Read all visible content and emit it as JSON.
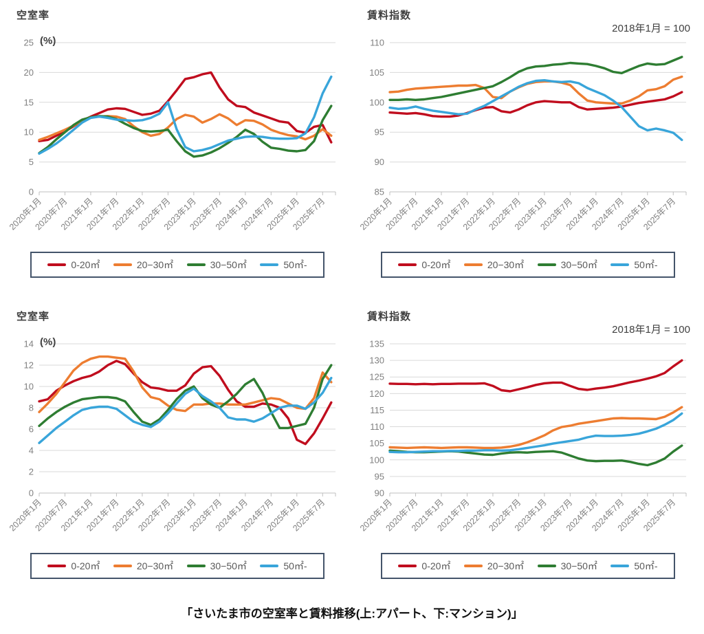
{
  "page": {
    "caption": "「さいたま市の空室率と賃料推移(上:アパート、下:マンション)」"
  },
  "x_axis": {
    "tick_labels": [
      "2020年1月",
      "2020年7月",
      "2021年1月",
      "2021年7月",
      "2022年1月",
      "2022年7月",
      "2023年1月",
      "2023年7月",
      "2024年1月",
      "2024年7月",
      "2025年1月",
      "2025年7月"
    ],
    "tick_interval_months": 6,
    "axis_total_months": 69
  },
  "legend": {
    "items": [
      {
        "key": "0-20",
        "label": "0-20㎡",
        "color": "#c00d1e"
      },
      {
        "key": "20-30",
        "label": "20−30㎡",
        "color": "#ed7d31"
      },
      {
        "key": "30-50",
        "label": "30−50㎡",
        "color": "#2e7d32"
      },
      {
        "key": "50-",
        "label": "50㎡-",
        "color": "#39a5da"
      }
    ]
  },
  "styles": {
    "grid_color": "#d9d9d9",
    "axis_color": "#bfbfbf",
    "tick_text_color": "#808080",
    "title_text_color": "#3f3f3f",
    "legend_border_color": "#44546a",
    "legend_text_color": "#595959"
  },
  "chart_data": [
    {
      "type": "line",
      "building": "アパート",
      "title": "空室率",
      "unit": "(%)",
      "subtitle": "",
      "ymin": 0,
      "ymax": 25,
      "ystep": 5,
      "x_start_month": 0,
      "x_step_months": 2,
      "series": [
        {
          "name": "0-20㎡",
          "key": "0-20",
          "color": "#c00d1e",
          "values": [
            8.5,
            8.7,
            9.4,
            10.1,
            11.0,
            11.9,
            12.6,
            13.2,
            13.8,
            14.0,
            13.9,
            13.4,
            12.9,
            13.1,
            13.6,
            15.2,
            17.0,
            18.9,
            19.2,
            19.7,
            20.0,
            17.5,
            15.5,
            14.4,
            14.2,
            13.3,
            12.8,
            12.3,
            11.8,
            11.6,
            10.2,
            9.9,
            10.9,
            11.2,
            8.3
          ]
        },
        {
          "name": "20−30㎡",
          "key": "20-30",
          "color": "#ed7d31",
          "values": [
            8.7,
            9.2,
            9.8,
            10.4,
            11.1,
            11.9,
            12.5,
            12.6,
            12.7,
            12.6,
            12.2,
            11.0,
            10.0,
            9.4,
            9.7,
            10.8,
            12.2,
            12.9,
            12.6,
            11.6,
            12.2,
            13.0,
            12.3,
            11.2,
            12.0,
            11.9,
            11.3,
            10.4,
            9.9,
            9.5,
            9.3,
            8.8,
            9.4,
            10.5,
            9.4
          ]
        },
        {
          "name": "30−50㎡",
          "key": "30-50",
          "color": "#2e7d32",
          "values": [
            6.5,
            7.5,
            8.8,
            10.0,
            11.2,
            12.1,
            12.5,
            12.7,
            12.6,
            12.2,
            11.4,
            10.7,
            10.2,
            10.1,
            10.2,
            10.4,
            8.5,
            6.8,
            5.9,
            6.1,
            6.6,
            7.3,
            8.2,
            9.2,
            10.4,
            9.7,
            8.4,
            7.4,
            7.2,
            6.9,
            6.8,
            7.0,
            8.5,
            12.0,
            14.4
          ]
        },
        {
          "name": "50㎡-",
          "key": "50-",
          "color": "#39a5da",
          "values": [
            6.4,
            7.2,
            8.1,
            9.2,
            10.4,
            11.6,
            12.4,
            12.6,
            12.4,
            12.1,
            12.0,
            11.9,
            12.0,
            12.4,
            13.1,
            15.0,
            10.5,
            7.5,
            6.8,
            7.0,
            7.4,
            8.0,
            8.6,
            8.9,
            9.2,
            9.3,
            9.2,
            9.0,
            8.9,
            8.9,
            9.0,
            9.8,
            12.5,
            16.5,
            19.3
          ]
        }
      ]
    },
    {
      "type": "line",
      "building": "アパート",
      "title": "賃料指数",
      "unit": "",
      "subtitle": "2018年1月 = 100",
      "ymin": 85,
      "ymax": 110,
      "ystep": 5,
      "x_start_month": 0,
      "x_step_months": 2,
      "series": [
        {
          "name": "0-20㎡",
          "key": "0-20",
          "color": "#c00d1e",
          "values": [
            98.3,
            98.2,
            98.1,
            98.2,
            98.0,
            97.7,
            97.6,
            97.6,
            97.8,
            98.2,
            98.7,
            99.1,
            99.2,
            98.5,
            98.3,
            98.8,
            99.5,
            100.0,
            100.2,
            100.1,
            100.0,
            100.0,
            99.2,
            98.8,
            98.9,
            99.0,
            99.1,
            99.3,
            99.6,
            99.9,
            100.1,
            100.3,
            100.5,
            101.0,
            101.7
          ]
        },
        {
          "name": "20−30㎡",
          "key": "20-30",
          "color": "#ed7d31",
          "values": [
            101.7,
            101.8,
            102.1,
            102.3,
            102.4,
            102.5,
            102.6,
            102.7,
            102.8,
            102.8,
            102.9,
            102.4,
            100.9,
            100.7,
            101.8,
            102.5,
            103.1,
            103.4,
            103.5,
            103.5,
            103.3,
            102.9,
            101.5,
            100.3,
            100.0,
            99.9,
            99.8,
            99.8,
            100.3,
            101.0,
            102.0,
            102.2,
            102.7,
            103.8,
            104.3
          ]
        },
        {
          "name": "30−50㎡",
          "key": "30-50",
          "color": "#2e7d32",
          "values": [
            100.4,
            100.4,
            100.5,
            100.4,
            100.5,
            100.7,
            100.9,
            101.2,
            101.5,
            101.8,
            102.1,
            102.4,
            102.7,
            103.4,
            104.2,
            105.1,
            105.7,
            106.0,
            106.1,
            106.3,
            106.4,
            106.6,
            106.5,
            106.4,
            106.1,
            105.7,
            105.1,
            104.9,
            105.5,
            106.1,
            106.5,
            106.3,
            106.4,
            107.0,
            107.6
          ]
        },
        {
          "name": "50㎡-",
          "key": "50-",
          "color": "#39a5da",
          "values": [
            99.1,
            98.9,
            99.0,
            99.3,
            98.9,
            98.6,
            98.4,
            98.2,
            98.0,
            98.1,
            98.8,
            99.4,
            100.2,
            101.0,
            101.8,
            102.6,
            103.2,
            103.6,
            103.7,
            103.5,
            103.4,
            103.5,
            103.2,
            102.4,
            101.8,
            101.2,
            100.3,
            99.2,
            97.6,
            96.0,
            95.3,
            95.6,
            95.3,
            94.9,
            93.7
          ]
        }
      ]
    },
    {
      "type": "line",
      "building": "マンション",
      "title": "空室率",
      "unit": "(%)",
      "subtitle": "",
      "ymin": 0,
      "ymax": 14,
      "ystep": 2,
      "x_start_month": 0,
      "x_step_months": 2,
      "series": [
        {
          "name": "0-20㎡",
          "key": "0-20",
          "color": "#c00d1e",
          "values": [
            8.6,
            8.8,
            9.6,
            10.1,
            10.5,
            10.8,
            11.0,
            11.4,
            12.0,
            12.4,
            12.1,
            11.2,
            10.4,
            9.9,
            9.8,
            9.6,
            9.6,
            10.1,
            11.2,
            11.8,
            11.9,
            11.0,
            9.7,
            8.6,
            8.1,
            8.1,
            8.4,
            8.3,
            8.0,
            7.0,
            5.0,
            4.6,
            5.6,
            7.0,
            8.5
          ]
        },
        {
          "name": "20−30㎡",
          "key": "20-30",
          "color": "#ed7d31",
          "values": [
            7.6,
            8.4,
            9.3,
            10.4,
            11.5,
            12.2,
            12.6,
            12.8,
            12.8,
            12.7,
            12.6,
            11.4,
            9.9,
            9.0,
            8.8,
            8.2,
            7.8,
            7.7,
            8.3,
            8.3,
            8.4,
            8.4,
            8.3,
            8.3,
            8.3,
            8.5,
            8.7,
            8.9,
            8.8,
            8.4,
            8.0,
            7.9,
            8.9,
            11.3,
            10.4
          ]
        },
        {
          "name": "30−50㎡",
          "key": "30-50",
          "color": "#2e7d32",
          "values": [
            6.3,
            7.0,
            7.6,
            8.1,
            8.5,
            8.8,
            8.9,
            9.0,
            9.0,
            8.9,
            8.6,
            7.6,
            6.7,
            6.4,
            6.9,
            7.8,
            8.8,
            9.6,
            10.0,
            8.9,
            8.3,
            8.0,
            8.6,
            9.3,
            10.2,
            10.7,
            9.4,
            7.6,
            6.1,
            6.1,
            6.3,
            6.5,
            8.0,
            10.7,
            12.0
          ]
        },
        {
          "name": "50㎡-",
          "key": "50-",
          "color": "#39a5da",
          "values": [
            4.7,
            5.4,
            6.1,
            6.7,
            7.3,
            7.8,
            8.0,
            8.1,
            8.1,
            7.9,
            7.3,
            6.7,
            6.4,
            6.2,
            6.7,
            7.5,
            8.4,
            9.3,
            9.8,
            9.1,
            8.6,
            8.0,
            7.1,
            6.9,
            6.9,
            6.7,
            7.0,
            7.5,
            8.0,
            8.2,
            8.2,
            7.9,
            8.5,
            9.4,
            10.8
          ]
        }
      ]
    },
    {
      "type": "line",
      "building": "マンション",
      "title": "賃料指数",
      "unit": "",
      "subtitle": "2018年1月 = 100",
      "ymin": 90,
      "ymax": 135,
      "ystep": 5,
      "x_start_month": 0,
      "x_step_months": 2,
      "series": [
        {
          "name": "0-20㎡",
          "key": "0-20",
          "color": "#c00d1e",
          "values": [
            123.0,
            122.9,
            122.9,
            122.8,
            122.9,
            122.8,
            122.9,
            122.9,
            123.0,
            123.0,
            123.0,
            123.1,
            122.3,
            121.0,
            120.7,
            121.3,
            121.9,
            122.6,
            123.1,
            123.3,
            123.3,
            122.3,
            121.4,
            121.1,
            121.5,
            121.8,
            122.2,
            122.8,
            123.4,
            123.9,
            124.5,
            125.2,
            126.2,
            128.2,
            130.0
          ]
        },
        {
          "name": "20−30㎡",
          "key": "20-30",
          "color": "#ed7d31",
          "values": [
            103.8,
            103.7,
            103.6,
            103.7,
            103.8,
            103.7,
            103.6,
            103.7,
            103.8,
            103.8,
            103.7,
            103.6,
            103.6,
            103.7,
            104.0,
            104.5,
            105.3,
            106.3,
            107.4,
            108.9,
            109.9,
            110.3,
            110.9,
            111.3,
            111.7,
            112.1,
            112.5,
            112.6,
            112.5,
            112.5,
            112.4,
            112.3,
            113.0,
            114.3,
            115.9
          ]
        },
        {
          "name": "30−50㎡",
          "key": "30-50",
          "color": "#2e7d32",
          "values": [
            102.8,
            102.6,
            102.4,
            102.3,
            102.3,
            102.4,
            102.5,
            102.6,
            102.5,
            102.2,
            101.9,
            101.6,
            101.5,
            101.9,
            102.2,
            102.3,
            102.2,
            102.4,
            102.5,
            102.6,
            102.2,
            101.3,
            100.4,
            99.8,
            99.6,
            99.7,
            99.7,
            99.8,
            99.4,
            98.8,
            98.4,
            99.2,
            100.4,
            102.5,
            104.3
          ]
        },
        {
          "name": "50㎡-",
          "key": "50-",
          "color": "#39a5da",
          "values": [
            102.4,
            102.3,
            102.3,
            102.4,
            102.5,
            102.6,
            102.6,
            102.7,
            102.7,
            102.8,
            102.8,
            102.9,
            102.9,
            102.8,
            102.9,
            103.2,
            103.6,
            104.0,
            104.4,
            104.9,
            105.3,
            105.7,
            106.1,
            106.8,
            107.3,
            107.2,
            107.2,
            107.3,
            107.5,
            107.9,
            108.6,
            109.4,
            110.6,
            112.0,
            114.0
          ]
        }
      ]
    }
  ]
}
